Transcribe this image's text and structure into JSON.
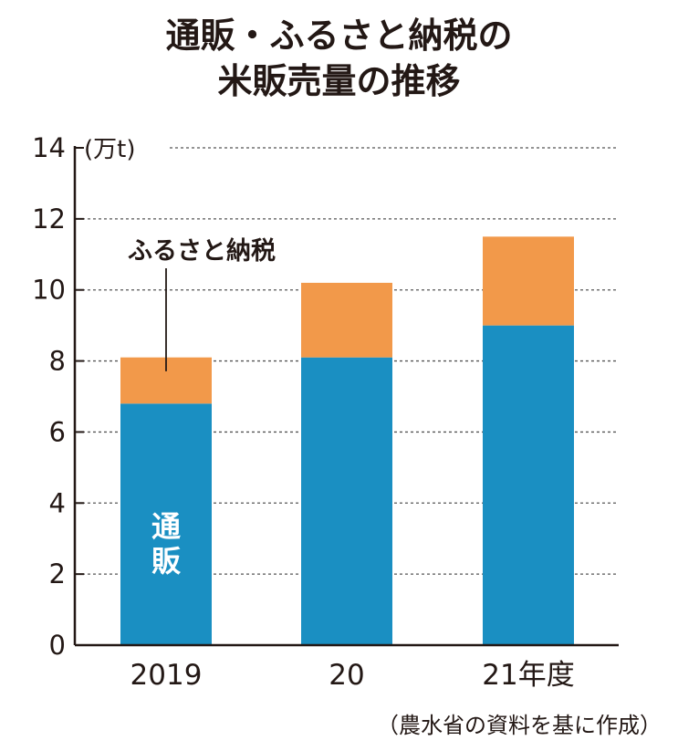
{
  "title_line1": "通販・ふるさと納税の",
  "title_line2": "米販売量の推移",
  "source": "（農水省の資料を基に作成）",
  "colors": {
    "tsuhan": "#1a8fc2",
    "furusato": "#f2994a",
    "axis": "#231815",
    "grid": "#555555"
  },
  "chart_data": {
    "type": "bar",
    "stacked": true,
    "categories": [
      "2019",
      "20",
      "21年度"
    ],
    "series": [
      {
        "name": "通販",
        "values": [
          6.8,
          8.1,
          9.0
        ]
      },
      {
        "name": "ふるさと納税",
        "values": [
          1.3,
          2.1,
          2.5
        ]
      }
    ],
    "totals": [
      8.1,
      10.2,
      11.5
    ],
    "unit": "(万t)",
    "ylim": [
      0,
      14
    ],
    "yticks": [
      "0",
      "2",
      "4",
      "6",
      "8",
      "10",
      "12",
      "14"
    ],
    "grid": true,
    "grid_style": "dashed",
    "legend": "inline labels"
  }
}
